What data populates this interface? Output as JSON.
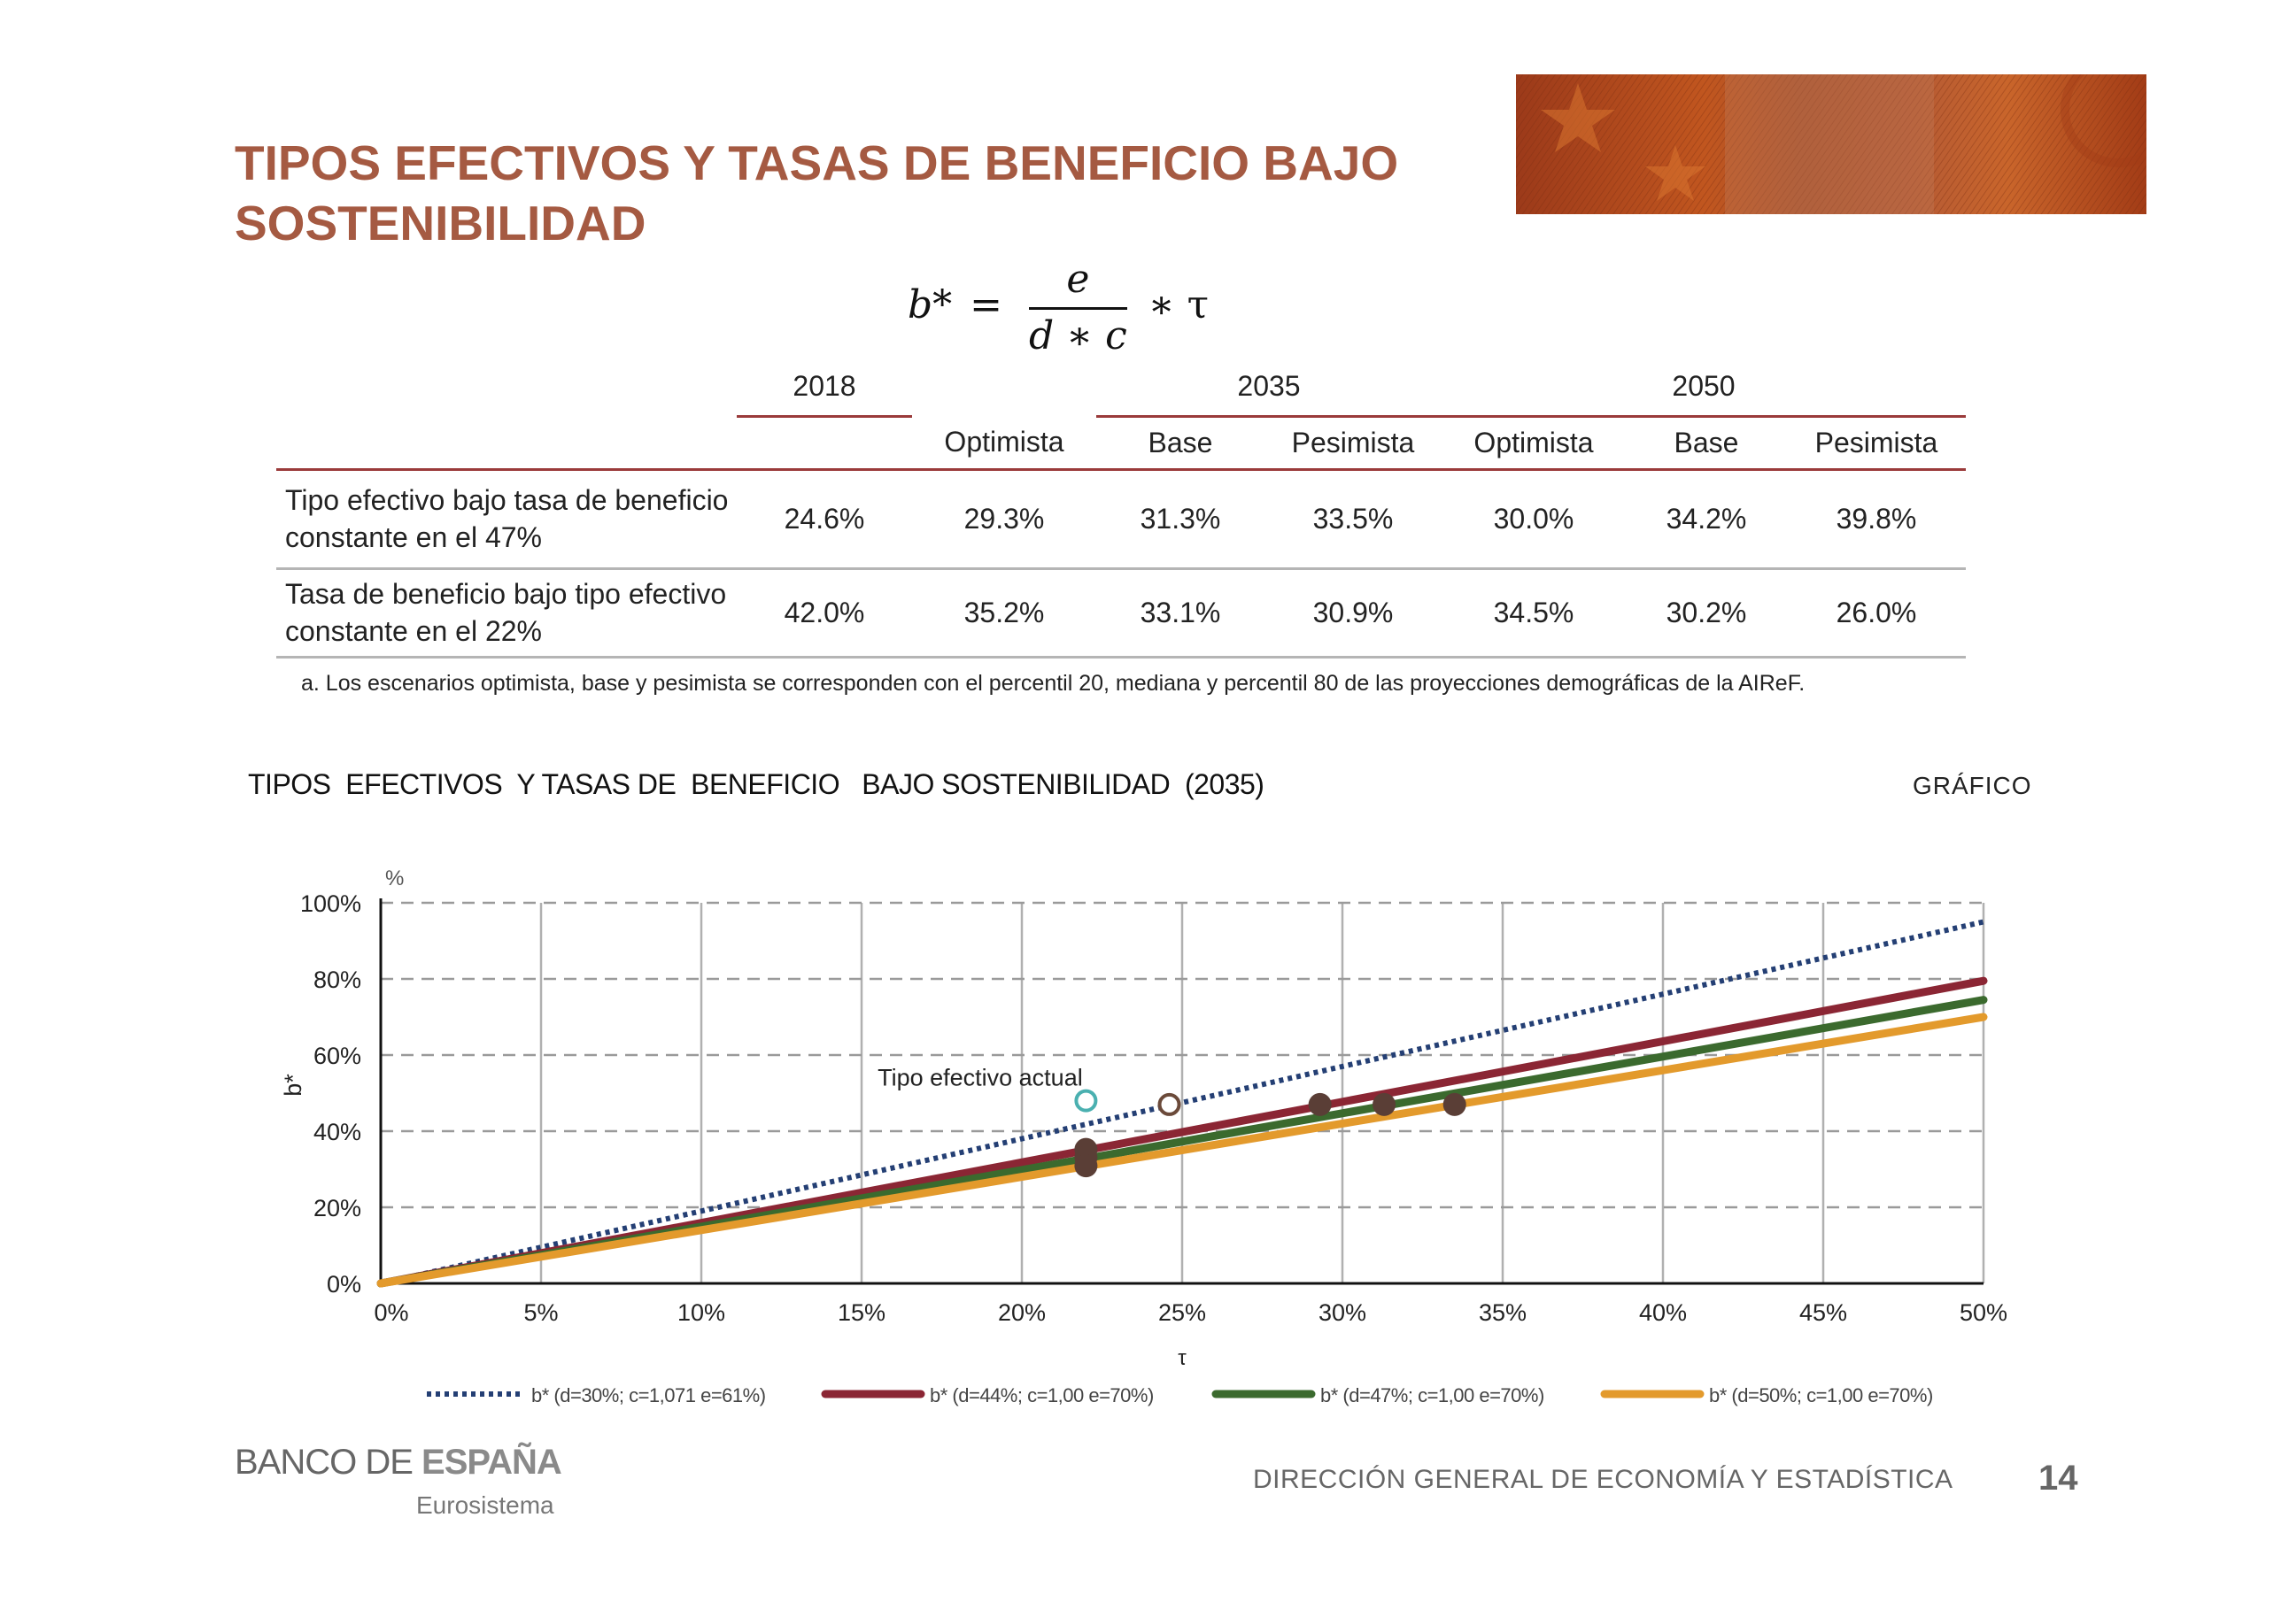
{
  "page": {
    "title": "TIPOS EFECTIVOS Y TASAS DE BENEFICIO BAJO SOSTENIBILIDAD",
    "formula": {
      "lhs": "b*",
      "num": "e",
      "den": "d ∗ c",
      "rhs": "∗ τ"
    }
  },
  "table": {
    "years": [
      "2018",
      "2035",
      "2050"
    ],
    "scenarios": [
      "Optimista",
      "Base",
      "Pesimista",
      "Optimista",
      "Base",
      "Pesimista"
    ],
    "rows": [
      {
        "label": "Tipo efectivo bajo tasa de beneficio constante en el 47%",
        "values": [
          "24.6%",
          "29.3%",
          "31.3%",
          "33.5%",
          "30.0%",
          "34.2%",
          "39.8%"
        ]
      },
      {
        "label": "Tasa de beneficio bajo tipo efectivo constante en el 22%",
        "values": [
          "42.0%",
          "35.2%",
          "33.1%",
          "30.9%",
          "34.5%",
          "30.2%",
          "26.0%"
        ]
      }
    ],
    "footnote": "a. Los escenarios optimista, base y pesimista se corresponden con el percentil 20, mediana y percentil 80 de las proyecciones demográficas de la AIReF."
  },
  "chart_title": "TIPOS  EFECTIVOS  Y TASAS DE  BENEFICIO   BAJO SOSTENIBILIDAD  (2035)",
  "chart_tag": "GRÁFICO",
  "chart_data": {
    "type": "line",
    "xlabel": "τ",
    "ylabel": "b*",
    "yunit": "%",
    "xlim": [
      0,
      50
    ],
    "ylim": [
      0,
      100
    ],
    "xticks": [
      "0%",
      "5%",
      "10%",
      "15%",
      "20%",
      "25%",
      "30%",
      "35%",
      "40%",
      "45%",
      "50%"
    ],
    "yticks": [
      "0%",
      "20%",
      "40%",
      "60%",
      "80%",
      "100%"
    ],
    "grid": true,
    "legend": "bottom",
    "series": [
      {
        "name": "b* (d=30%; c=1,071 e=61%)",
        "color": "#243f74",
        "style": "dotted",
        "x": [
          0,
          50
        ],
        "y": [
          0,
          95
        ]
      },
      {
        "name": "b* (d=44%; c=1,00 e=70%)",
        "color": "#8b2634",
        "style": "solid",
        "x": [
          0,
          50
        ],
        "y": [
          0,
          79.5
        ]
      },
      {
        "name": "b* (d=47%; c=1,00 e=70%)",
        "color": "#3b6a2e",
        "style": "solid",
        "x": [
          0,
          50
        ],
        "y": [
          0,
          74.5
        ]
      },
      {
        "name": "b* (d=50%; c=1,00 e=70%)",
        "color": "#e39a2c",
        "style": "solid",
        "x": [
          0,
          50
        ],
        "y": [
          0,
          70
        ]
      }
    ],
    "points": [
      {
        "x": 22,
        "y": 48,
        "style": "hollow",
        "color": "#4ab0b0"
      },
      {
        "x": 24.6,
        "y": 47,
        "style": "hollow",
        "color": "#6b4a3a"
      },
      {
        "x": 22,
        "y": 35.2,
        "style": "filled",
        "color": "#5a3e36"
      },
      {
        "x": 22,
        "y": 33.1,
        "style": "filled",
        "color": "#5a3e36"
      },
      {
        "x": 22,
        "y": 30.9,
        "style": "filled",
        "color": "#5a3e36"
      },
      {
        "x": 29.3,
        "y": 47,
        "style": "filled",
        "color": "#5a3e36"
      },
      {
        "x": 31.3,
        "y": 47,
        "style": "filled",
        "color": "#5a3e36"
      },
      {
        "x": 33.5,
        "y": 47,
        "style": "filled",
        "color": "#5a3e36"
      }
    ],
    "annotation": {
      "text": "Tipo efectivo actual",
      "x": 15.5,
      "y": 52
    }
  },
  "footer": {
    "logo_part1": "BANCO DE ",
    "logo_part2": "ESPAÑA",
    "logo_sub": "Eurosistema",
    "department": "DIRECCIÓN GENERAL DE ECONOMÍA Y ESTADÍSTICA",
    "page_number": "14"
  }
}
